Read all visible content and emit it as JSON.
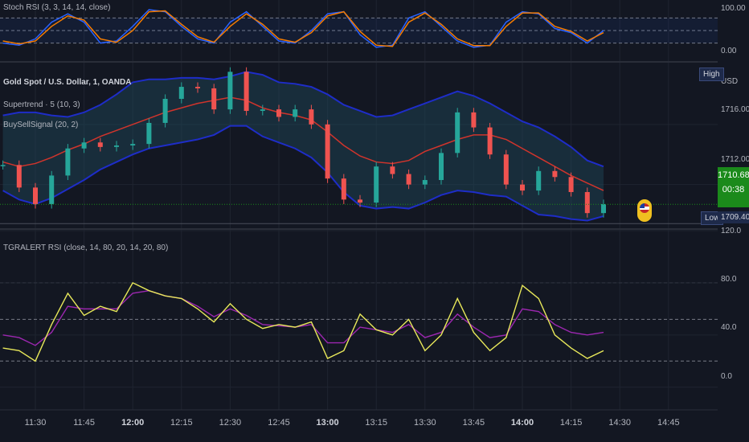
{
  "panes": {
    "stoch": {
      "label": "Stoch RSI (3, 3, 14, 14, close)"
    },
    "main": {
      "symbol": "Gold Spot / U.S. Dollar, 1, OANDA",
      "indicator1": "Supertrend · 5 (10, 3)",
      "indicator2": "BuySellSignal (20, 2)"
    },
    "rsi": {
      "label": "TGRALERT RSI (close, 14, 80, 20, 14, 20, 80)"
    }
  },
  "axis": {
    "stoch_ticks": [
      "100.00",
      "0.00"
    ],
    "main_ticks": [
      "USD",
      "1716.000",
      "1712.000"
    ],
    "rsi_ticks": [
      "120.0",
      "80.0",
      "40.0",
      "0.0"
    ],
    "high_label": "High",
    "low_label": "Low",
    "low_value": "1709.400",
    "last_price": "1710.685",
    "countdown": "00:38"
  },
  "time_labels": [
    "11:30",
    "11:45",
    "12:00",
    "12:15",
    "12:30",
    "12:45",
    "13:00",
    "13:15",
    "13:30",
    "13:45",
    "14:00",
    "14:15",
    "14:30",
    "14:45"
  ],
  "bold_times": [
    "12:00",
    "13:00",
    "14:00"
  ],
  "colors": {
    "background": "#131722",
    "grid": "#1f2430",
    "up": "#26a69a",
    "down": "#ef5350",
    "band": "#1e2dc8",
    "band_fill": "#1f4a5a",
    "basis": "#d0342c",
    "stoch_k": "#2962ff",
    "stoch_d": "#f57c00",
    "rsi_yellow": "#e8e85a",
    "rsi_purple": "#9c27b0",
    "last_price_bg": "#1b8a1b"
  },
  "chart_data": [
    {
      "type": "line",
      "name": "Stoch RSI",
      "x": [
        "11:20",
        "11:25",
        "11:30",
        "11:35",
        "11:40",
        "11:45",
        "11:50",
        "11:55",
        "12:00",
        "12:05",
        "12:10",
        "12:15",
        "12:20",
        "12:25",
        "12:30",
        "12:35",
        "12:40",
        "12:45",
        "12:50",
        "12:55",
        "13:00",
        "13:05",
        "13:10",
        "13:15",
        "13:20",
        "13:25",
        "13:30",
        "13:35",
        "13:40",
        "13:45",
        "13:50",
        "13:55",
        "14:00",
        "14:05",
        "14:10",
        "14:15",
        "14:20",
        "14:25"
      ],
      "series": [
        {
          "values": [
            20,
            15,
            30,
            70,
            90,
            70,
            20,
            25,
            60,
            100,
            95,
            60,
            30,
            20,
            70,
            95,
            60,
            25,
            20,
            50,
            90,
            95,
            40,
            10,
            15,
            80,
            95,
            60,
            25,
            10,
            15,
            70,
            95,
            90,
            55,
            45,
            20,
            50
          ]
        },
        {
          "values": [
            25,
            18,
            25,
            60,
            85,
            75,
            30,
            22,
            50,
            95,
            97,
            65,
            35,
            22,
            60,
            90,
            65,
            30,
            22,
            45,
            85,
            95,
            48,
            15,
            12,
            70,
            92,
            65,
            30,
            14,
            14,
            60,
            92,
            92,
            60,
            48,
            25,
            45
          ]
        }
      ],
      "ylim": [
        0,
        100
      ],
      "reference_lines": [
        80,
        50,
        20
      ]
    },
    {
      "type": "line",
      "name": "Gold Spot / U.S. Dollar",
      "x": [
        "11:20",
        "11:25",
        "11:30",
        "11:35",
        "11:40",
        "11:45",
        "11:50",
        "11:55",
        "12:00",
        "12:05",
        "12:10",
        "12:15",
        "12:20",
        "12:25",
        "12:30",
        "12:35",
        "12:40",
        "12:45",
        "12:50",
        "12:55",
        "13:00",
        "13:05",
        "13:10",
        "13:15",
        "13:20",
        "13:25",
        "13:30",
        "13:35",
        "13:40",
        "13:45",
        "13:50",
        "13:55",
        "14:00",
        "14:05",
        "14:10",
        "14:15",
        "14:20",
        "14:25"
      ],
      "series": [
        {
          "name": "Upper band",
          "values": [
            1716.6,
            1716.8,
            1716.8,
            1716.6,
            1716.5,
            1716.8,
            1717.3,
            1718.0,
            1718.8,
            1719.0,
            1719.0,
            1719.1,
            1719.1,
            1719.0,
            1719.2,
            1719.5,
            1719.3,
            1718.8,
            1718.7,
            1718.5,
            1718.0,
            1717.3,
            1716.9,
            1716.5,
            1716.6,
            1717.0,
            1717.4,
            1717.8,
            1718.2,
            1717.9,
            1717.4,
            1716.8,
            1716.2,
            1715.8,
            1715.2,
            1714.5,
            1713.6,
            1713.2
          ]
        },
        {
          "name": "Basis",
          "values": [
            1713.5,
            1713.2,
            1713.4,
            1713.8,
            1714.3,
            1714.7,
            1715.2,
            1715.6,
            1716.0,
            1716.4,
            1716.8,
            1717.1,
            1717.4,
            1717.6,
            1717.8,
            1717.6,
            1717.1,
            1716.8,
            1716.6,
            1716.3,
            1715.5,
            1714.6,
            1713.9,
            1713.5,
            1713.4,
            1713.6,
            1714.2,
            1714.6,
            1715.0,
            1715.3,
            1715.3,
            1715.0,
            1714.4,
            1713.8,
            1713.2,
            1712.6,
            1712.1,
            1711.6
          ]
        },
        {
          "name": "Lower band",
          "values": [
            1711.6,
            1711.0,
            1710.7,
            1711.1,
            1711.7,
            1712.3,
            1713.0,
            1713.5,
            1714.0,
            1714.4,
            1714.6,
            1714.8,
            1715.0,
            1715.3,
            1715.9,
            1715.9,
            1715.2,
            1714.8,
            1714.4,
            1713.8,
            1712.8,
            1711.5,
            1710.6,
            1710.4,
            1710.5,
            1710.4,
            1710.8,
            1711.3,
            1711.6,
            1711.5,
            1711.3,
            1711.2,
            1710.6,
            1710.0,
            1709.9,
            1709.7,
            1709.6,
            1709.9
          ]
        },
        {
          "name": "Close",
          "values": [
            1713.3,
            1711.8,
            1710.7,
            1712.6,
            1714.4,
            1714.8,
            1714.5,
            1714.6,
            1714.7,
            1716.1,
            1717.7,
            1718.5,
            1718.4,
            1717.0,
            1719.5,
            1716.9,
            1717.0,
            1716.5,
            1717.0,
            1716.0,
            1712.4,
            1711.0,
            1710.8,
            1713.2,
            1712.7,
            1712.0,
            1712.3,
            1714.1,
            1716.8,
            1715.8,
            1714.0,
            1712.0,
            1711.6,
            1712.9,
            1712.5,
            1711.5,
            1710.1,
            1710.7
          ]
        }
      ],
      "ylim": [
        1709.2,
        1720.0
      ],
      "yticks": [
        1716.0,
        1712.0
      ],
      "last_value": 1710.685,
      "low": 1709.4
    },
    {
      "type": "line",
      "name": "TGRALERT RSI",
      "x": [
        "11:20",
        "11:25",
        "11:30",
        "11:35",
        "11:40",
        "11:45",
        "11:50",
        "11:55",
        "12:00",
        "12:05",
        "12:10",
        "12:15",
        "12:20",
        "12:25",
        "12:30",
        "12:35",
        "12:40",
        "12:45",
        "12:50",
        "12:55",
        "13:00",
        "13:05",
        "13:10",
        "13:15",
        "13:20",
        "13:25",
        "13:30",
        "13:35",
        "13:40",
        "13:45",
        "13:50",
        "13:55",
        "14:00",
        "14:05",
        "14:10",
        "14:15",
        "14:20",
        "14:25"
      ],
      "series": [
        {
          "values": [
            30,
            28,
            20,
            48,
            72,
            55,
            62,
            58,
            80,
            74,
            70,
            68,
            60,
            50,
            64,
            52,
            45,
            48,
            46,
            50,
            22,
            28,
            56,
            44,
            40,
            52,
            28,
            40,
            68,
            42,
            28,
            38,
            78,
            68,
            40,
            30,
            22,
            28
          ]
        },
        {
          "values": [
            40,
            38,
            32,
            42,
            62,
            60,
            60,
            60,
            72,
            74,
            70,
            68,
            62,
            54,
            60,
            55,
            48,
            47,
            46,
            48,
            34,
            34,
            46,
            44,
            42,
            48,
            38,
            42,
            56,
            46,
            38,
            40,
            60,
            58,
            48,
            42,
            40,
            42
          ]
        }
      ],
      "ylim": [
        -10,
        120
      ],
      "yticks": [
        120,
        80,
        40,
        0
      ],
      "reference_lines": [
        80,
        52,
        20
      ]
    }
  ]
}
